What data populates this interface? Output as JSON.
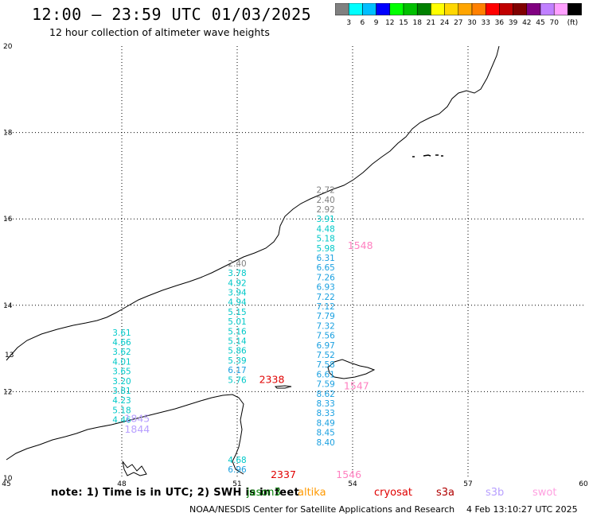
{
  "header": {
    "title": "12:00 – 23:59 UTC 01/03/2025",
    "subtitle": "12 hour collection of altimeter wave heights"
  },
  "colorbar": {
    "colors": [
      "#808080",
      "#00ffff",
      "#00bfff",
      "#0000ff",
      "#00ff00",
      "#00c000",
      "#008000",
      "#ffff00",
      "#ffd700",
      "#ffa500",
      "#ff8000",
      "#ff0000",
      "#c00000",
      "#800000",
      "#800080",
      "#c080ff",
      "#ffa0ff",
      "#000000"
    ],
    "labels": [
      "3",
      "6",
      "9",
      "12",
      "15",
      "18",
      "21",
      "24",
      "27",
      "30",
      "33",
      "36",
      "39",
      "42",
      "45",
      "70",
      "(ft)"
    ]
  },
  "map": {
    "lat_labels": [
      "20",
      "18",
      "16",
      "14",
      "12",
      "10"
    ],
    "lon_labels": [
      "45",
      "48",
      "51",
      "54",
      "57",
      "60"
    ],
    "lat_values": [
      20,
      18,
      16,
      14,
      12,
      10
    ],
    "lon_values": [
      45,
      48,
      51,
      54,
      57,
      60
    ],
    "lat_range": [
      10,
      20
    ],
    "lon_range": [
      45,
      60
    ],
    "extra_labels": [
      {
        "text": "13",
        "lon": 45.0,
        "lat": 12.8
      }
    ],
    "tracks": [
      {
        "lon": 48.0,
        "top_lat": 13.3,
        "color": "#00c8c8",
        "values": [
          "3.61",
          "4.66",
          "3.62",
          "4.01",
          "3.65",
          "3.20",
          "3.81",
          "4.23",
          "5.18",
          "4.46"
        ]
      },
      {
        "lon": 51.0,
        "top_lat": 14.9,
        "color": "#00c8c8",
        "values": [
          "2.40",
          "3.78",
          "4.92",
          "3.94",
          "4.94",
          "5.15",
          "5.01",
          "5.16",
          "5.14",
          "5.86",
          "5.39",
          "6.17",
          "5.76"
        ]
      },
      {
        "lon": 53.3,
        "top_lat": 16.6,
        "color": "#00c8c8",
        "values": [
          "2.72",
          "2.40",
          "2.92",
          "3.91",
          "4.48",
          "5.18",
          "5.98",
          "6.31",
          "6.65",
          "7.26",
          "6.93",
          "7.22",
          "7.12",
          "7.79",
          "7.32",
          "7.56",
          "6.97",
          "7.52",
          "7.58",
          "6.61",
          "7.59",
          "8.62",
          "8.33",
          "8.33",
          "8.49",
          "8.45",
          "8.40"
        ]
      },
      {
        "lon": 51.0,
        "top_lat": 10.35,
        "color": "#00c8c8",
        "values": [
          "4.68",
          "6.96"
        ]
      }
    ],
    "passes": [
      {
        "text": "1548",
        "lon": 54.2,
        "lat": 15.3,
        "color": "#ff80c0"
      },
      {
        "text": "1845",
        "lon": 48.4,
        "lat": 11.3,
        "color": "#b8a0ff"
      },
      {
        "text": "1844",
        "lon": 48.4,
        "lat": 11.05,
        "color": "#b8a0ff"
      },
      {
        "text": "2338",
        "lon": 51.9,
        "lat": 12.2,
        "color": "#e00000"
      },
      {
        "text": "1547",
        "lon": 54.1,
        "lat": 12.05,
        "color": "#ff80c0"
      },
      {
        "text": "2337",
        "lon": 52.2,
        "lat": 10.0,
        "color": "#e00000"
      },
      {
        "text": "1546",
        "lon": 53.9,
        "lat": 10.0,
        "color": "#ff80c0"
      }
    ]
  },
  "legend": {
    "note": "note:  1) Time is in UTC;  2) SWH is in feet",
    "satellites": [
      {
        "name": "jason3",
        "color": "#008000"
      },
      {
        "name": "altika",
        "color": "#ff9900"
      },
      {
        "name": "cryosat",
        "color": "#e00000"
      },
      {
        "name": "s3a",
        "color": "#b00000"
      },
      {
        "name": "s3b",
        "color": "#b8a0ff"
      },
      {
        "name": "swot",
        "color": "#ffa0e0"
      }
    ]
  },
  "footer": {
    "credit": "NOAA/NESDIS Center for Satellite Applications and Research",
    "timestamp": "4 Feb 13:10:27 UTC 2025"
  }
}
